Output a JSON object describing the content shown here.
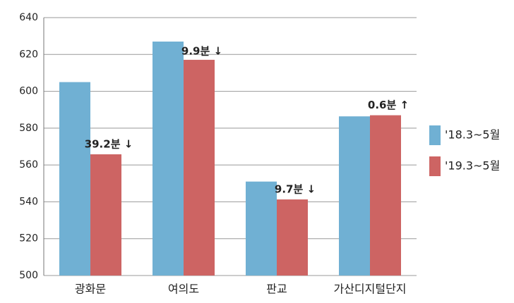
{
  "chart_data": {
    "type": "bar",
    "categories": [
      "광화문",
      "여의도",
      "판교",
      "가산디지털단지"
    ],
    "series": [
      {
        "name": "'18.3~5월",
        "color": "#70b0d3",
        "values": [
          605,
          627,
          551,
          586.4
        ]
      },
      {
        "name": "'19.3~5월",
        "color": "#cd6463",
        "values": [
          565.8,
          617.1,
          541.3,
          587
        ]
      }
    ],
    "annotations": [
      "39.2분 ↓",
      "9.9분 ↓",
      "9.7분 ↓",
      "0.6분 ↑"
    ],
    "ylim": [
      500,
      640
    ],
    "yticks": [
      500,
      520,
      540,
      560,
      580,
      600,
      620,
      640
    ],
    "grid": true
  }
}
